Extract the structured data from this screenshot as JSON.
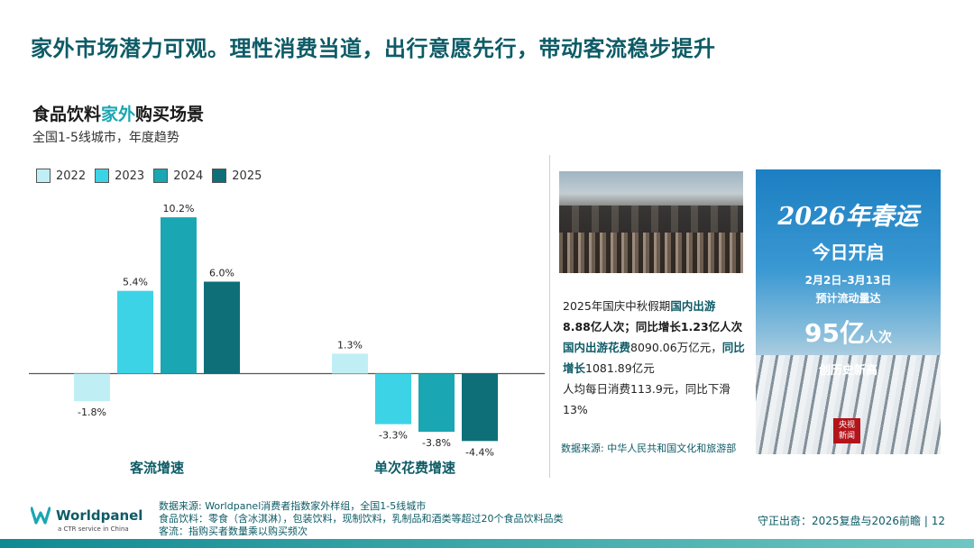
{
  "headline": "家外市场潜力可观。理性消费当道，出行意愿先行，带动客流稳步提升",
  "chart_title": {
    "prefix": "食品饮料",
    "highlight": "家外",
    "suffix": "购买场景"
  },
  "chart_subtitle": "全国1-5线城市，年度趋势",
  "chart_data": {
    "type": "bar",
    "categories": [
      "客流增速",
      "单次花费增速"
    ],
    "series": [
      {
        "name": "2022",
        "values": [
          -1.8,
          1.3
        ],
        "color": "#bfeff5"
      },
      {
        "name": "2023",
        "values": [
          5.4,
          -3.3
        ],
        "color": "#3dd3e6"
      },
      {
        "name": "2024",
        "values": [
          10.2,
          -3.8
        ],
        "color": "#1aa6b3"
      },
      {
        "name": "2025",
        "values": [
          6.0,
          -4.4
        ],
        "color": "#0e6f78"
      }
    ],
    "value_labels": [
      [
        "-1.8%",
        "1.3%"
      ],
      [
        "5.4%",
        "-3.3%"
      ],
      [
        "10.2%",
        "-3.8%"
      ],
      [
        "6.0%",
        "-4.4%"
      ]
    ],
    "unit": "%",
    "legend_position": "top-left",
    "grid": false
  },
  "caption": {
    "part1": "2025年国庆中秋假期",
    "part2": "国内出游",
    "part3": "8.88",
    "part4": "亿人次；同比增长1.23亿人次",
    "part5": "国内出游花费",
    "part6": "8090.06万亿元，",
    "part7": "同比增长",
    "part8": "1081.89亿元",
    "part9": "人均每日消费113.9元，同比下滑13%"
  },
  "source_right": "数据来源: 中华人民共和国文化和旅游部",
  "poster": {
    "title": "2026年春运",
    "open": "今日开启",
    "date": "2月2日–3月13日",
    "flow": "预计流动量达",
    "volume_num": "95亿",
    "volume_unit": "人次",
    "record": "创历史新高",
    "badge_line1": "央视",
    "badge_line2": "新闻"
  },
  "logo": {
    "name": "Worldpanel",
    "tagline": "a CTR service in China"
  },
  "footnotes": {
    "line1": "数据来源: Worldpanel消费者指数家外样组，全国1-5线城市",
    "line2": "食品饮料：零食（含冰淇淋），包装饮料，现制饮料，乳制品和酒类等超过20个食品饮料品类",
    "line3": "客流：指购买者数量乘以购买频次"
  },
  "footer_right": "守正出奇：2025复盘与2026前瞻 | 12",
  "colors": {
    "brand": "#0d5b66",
    "accent": "#1aa6b3"
  }
}
